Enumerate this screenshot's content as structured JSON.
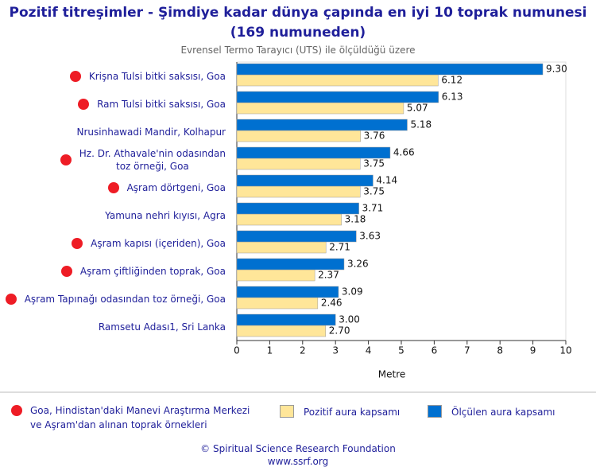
{
  "chart_data": {
    "type": "hbar",
    "title": "Pozitif titreşimler - Şimdiye kadar dünya çapında en iyi 10 toprak numunesi\n(169 numuneden)",
    "subtitle": "Evrensel Termo Tarayıcı (UTS) ile ölçüldüğü üzere",
    "x_label": "Metre",
    "categories": [
      "Krişna Tulsi bitki saksısı, Goa",
      "Ram Tulsi bitki saksısı, Goa",
      "Nrusinhawadi Mandir, Kolhapur",
      "Hz. Dr. Athavale'nin odasından\ntoz örneği, Goa",
      "Aşram dörtgeni, Goa",
      "Yamuna nehri kıyısı, Agra",
      "Aşram kapısı (içeriden), Goa",
      "Aşram çiftliğinden toprak, Goa",
      "Aşram Tapınağı odasından toz örneği, Goa",
      "Ramsetu Adası1, Sri Lanka"
    ],
    "marked": [
      true,
      true,
      false,
      true,
      true,
      false,
      true,
      true,
      true,
      false
    ],
    "marker_color": "#ee1c25",
    "marker_legend": "Goa, Hindistan'daki Manevi Araştırma Merkezi\nve Aşram'dan alınan toprak örnekleri",
    "series": [
      {
        "name": "Pozitif aura kapsamı",
        "color": "#ffe699",
        "values": [
          6.12,
          5.07,
          3.76,
          3.75,
          3.75,
          3.18,
          2.71,
          2.37,
          2.46,
          2.7
        ],
        "value_labels": [
          "6.12",
          "5.07",
          "3.76",
          "3.75",
          "3.75",
          "3.18",
          "2.71",
          "2.37",
          "2.46",
          "2.70"
        ]
      },
      {
        "name": "Ölçülen aura kapsamı",
        "color": "#0070d0",
        "values": [
          9.3,
          6.13,
          5.18,
          4.66,
          4.14,
          3.71,
          3.63,
          3.26,
          3.09,
          3.0
        ],
        "value_labels": [
          "9.30",
          "6.13",
          "5.18",
          "4.66",
          "4.14",
          "3.71",
          "3.63",
          "3.26",
          "3.09",
          "3.00"
        ]
      }
    ],
    "xlim": [
      0,
      10
    ],
    "xticks": [
      0,
      1,
      2,
      3,
      4,
      5,
      6,
      7,
      8,
      9,
      10
    ],
    "grid": false,
    "footer": [
      "© Spiritual Science Research Foundation",
      "www.ssrf.org"
    ]
  }
}
